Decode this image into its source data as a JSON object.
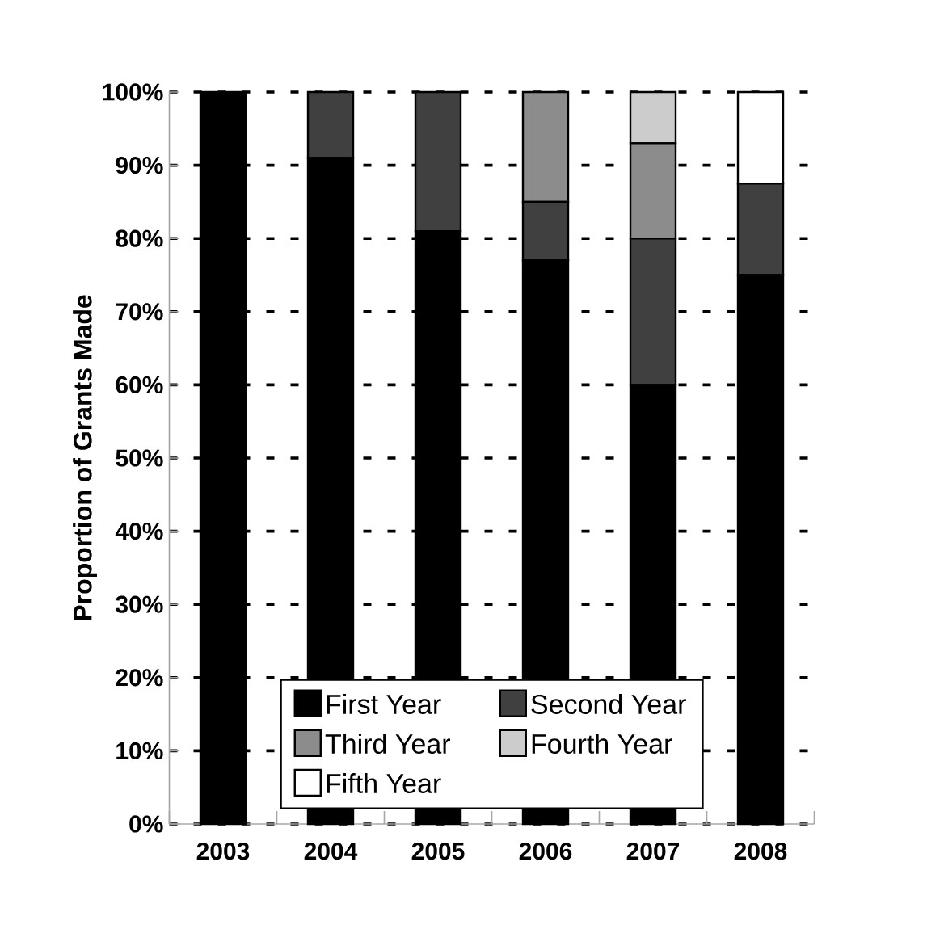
{
  "chart_data": {
    "type": "bar",
    "stacked": true,
    "ylabel": "Proportion of Grants Made",
    "categories": [
      "2003",
      "2004",
      "2005",
      "2006",
      "2007",
      "2008"
    ],
    "series": [
      {
        "name": "First Year",
        "color": "#000000",
        "values": [
          100,
          91,
          81,
          77,
          60,
          75
        ]
      },
      {
        "name": "Second Year",
        "color": "#404040",
        "values": [
          null,
          9,
          19,
          8,
          20,
          12.5
        ]
      },
      {
        "name": "Third Year",
        "color": "#8c8c8c",
        "values": [
          null,
          null,
          null,
          15,
          13,
          null
        ]
      },
      {
        "name": "Fourth Year",
        "color": "#cccccc",
        "values": [
          null,
          null,
          null,
          null,
          7,
          null
        ]
      },
      {
        "name": "Fifth Year",
        "color": "#ffffff",
        "values": [
          null,
          null,
          null,
          null,
          null,
          12.5
        ]
      }
    ],
    "ylim": [
      0,
      100
    ],
    "yticks": [
      {
        "value": 0,
        "label": "0%"
      },
      {
        "value": 10,
        "label": "10%"
      },
      {
        "value": 20,
        "label": "20%"
      },
      {
        "value": 30,
        "label": "30%"
      },
      {
        "value": 40,
        "label": "40%"
      },
      {
        "value": 50,
        "label": "50%"
      },
      {
        "value": 60,
        "label": "60%"
      },
      {
        "value": 70,
        "label": "70%"
      },
      {
        "value": 80,
        "label": "80%"
      },
      {
        "value": 90,
        "label": "90%"
      },
      {
        "value": 100,
        "label": "100%"
      }
    ],
    "grid": "y",
    "legend": "bottom"
  }
}
